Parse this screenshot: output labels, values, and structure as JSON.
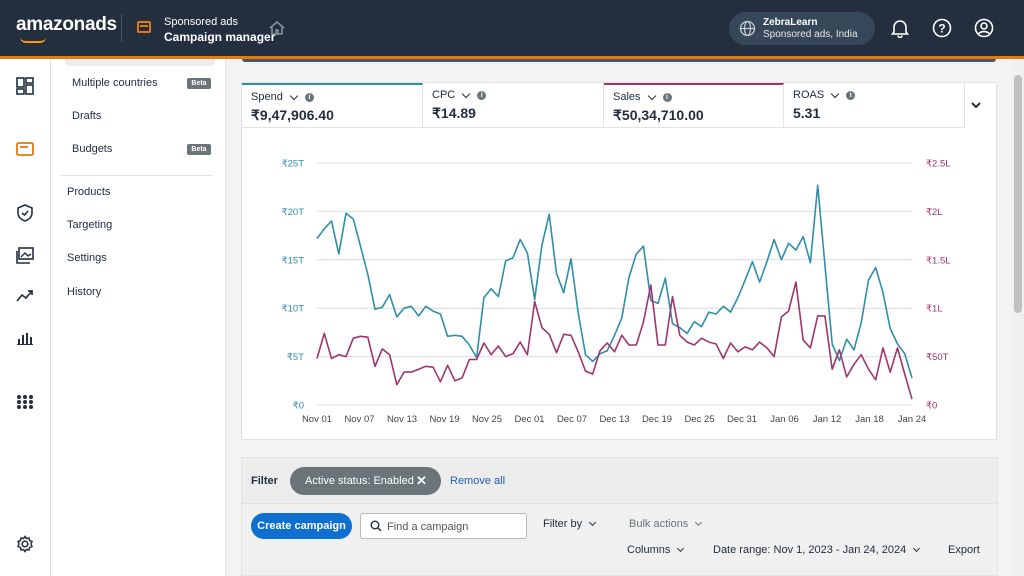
{
  "brand": {
    "name": "amazonads"
  },
  "header": {
    "section_top": "Sponsored ads",
    "section_bottom": "Campaign manager",
    "account_name": "ZebraLearn",
    "account_sub": "Sponsored ads, India"
  },
  "subnav": {
    "items": [
      {
        "label": "Multiple countries",
        "badge": "Beta"
      },
      {
        "label": "Drafts"
      },
      {
        "label": "Budgets",
        "badge": "Beta"
      },
      {
        "label": "Products"
      },
      {
        "label": "Targeting"
      },
      {
        "label": "Settings"
      },
      {
        "label": "History"
      }
    ]
  },
  "metrics": [
    {
      "label": "Spend",
      "value": "₹9,47,906.40",
      "color": "#2d8faa"
    },
    {
      "label": "CPC",
      "value": "₹14.89"
    },
    {
      "label": "Sales",
      "value": "₹50,34,710.00",
      "color": "#a0356e"
    },
    {
      "label": "ROAS",
      "value": "5.31"
    }
  ],
  "chart_data": {
    "type": "line",
    "x_tick_labels": [
      "Nov 01",
      "Nov 07",
      "Nov 13",
      "Nov 19",
      "Nov 25",
      "Dec 01",
      "Dec 07",
      "Dec 13",
      "Dec 19",
      "Dec 25",
      "Dec 31",
      "Jan 06",
      "Jan 12",
      "Jan 18",
      "Jan 24"
    ],
    "y_left_ticks": [
      "₹0",
      "₹5T",
      "₹10T",
      "₹15T",
      "₹20T",
      "₹25T"
    ],
    "y_right_ticks": [
      "₹0",
      "₹50T",
      "₹1L",
      "₹1.5L",
      "₹2L",
      "₹2.5L"
    ],
    "y_left_range": [
      0,
      25000
    ],
    "y_right_range": [
      0,
      250000
    ],
    "grid": true,
    "series": [
      {
        "name": "Spend",
        "axis": "left",
        "color": "#2d8faa",
        "values": [
          17200,
          18200,
          19000,
          15600,
          19800,
          19200,
          16400,
          13500,
          9900,
          10100,
          11400,
          9100,
          10000,
          10200,
          9200,
          10200,
          9700,
          9400,
          7100,
          7200,
          7100,
          6200,
          4900,
          11100,
          12000,
          11200,
          14900,
          15200,
          17100,
          15700,
          10900,
          16500,
          19700,
          13600,
          11600,
          15100,
          9500,
          5200,
          4500,
          5300,
          5600,
          7200,
          9000,
          13200,
          15600,
          16400,
          10800,
          10500,
          13100,
          8400,
          8000,
          7400,
          8600,
          8100,
          9600,
          9400,
          10200,
          9600,
          11100,
          12900,
          14800,
          12700,
          14800,
          17100,
          15000,
          16700,
          16000,
          17400,
          14700,
          22700,
          14500,
          6300,
          4600,
          6800,
          5700,
          8500,
          12900,
          14200,
          11600,
          7900,
          6300,
          5300,
          2800
        ]
      },
      {
        "name": "Sales",
        "axis": "right",
        "color": "#a0356e",
        "values": [
          48000,
          74000,
          48000,
          52000,
          50000,
          69000,
          71000,
          70000,
          40000,
          58000,
          52000,
          21000,
          34000,
          34000,
          37000,
          40000,
          39000,
          24000,
          41000,
          25000,
          28000,
          47000,
          47000,
          64000,
          52000,
          61000,
          50000,
          53000,
          65000,
          52000,
          107000,
          80000,
          73000,
          54000,
          73000,
          72000,
          55000,
          35000,
          32000,
          56000,
          64000,
          55000,
          72000,
          62000,
          62000,
          86000,
          124000,
          62000,
          62000,
          112000,
          72000,
          65000,
          62000,
          69000,
          65000,
          63000,
          48000,
          64000,
          55000,
          60000,
          57000,
          65000,
          59000,
          50000,
          91000,
          97000,
          127000,
          67000,
          59000,
          92000,
          92000,
          37000,
          57000,
          29000,
          42000,
          52000,
          37000,
          26000,
          59000,
          34000,
          59000,
          32000,
          6000
        ]
      }
    ]
  },
  "filter": {
    "label": "Filter",
    "chip": "Active status: Enabled",
    "remove_all": "Remove all",
    "create_campaign": "Create campaign",
    "search_placeholder": "Find a campaign",
    "filter_by": "Filter by",
    "bulk_actions": "Bulk actions",
    "columns": "Columns",
    "date_range": "Date range: Nov 1, 2023 - Jan 24, 2024",
    "export": "Export"
  }
}
